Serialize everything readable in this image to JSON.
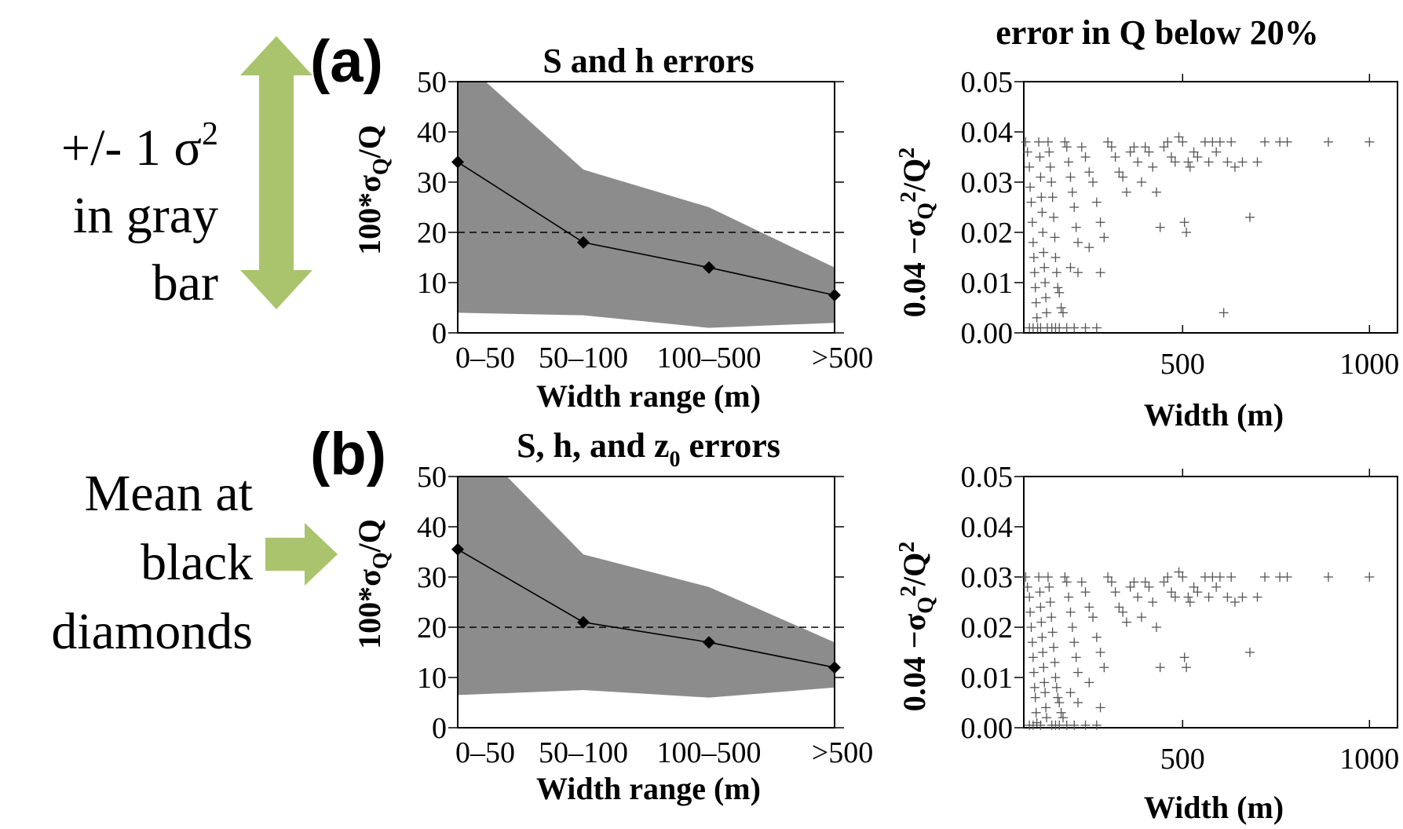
{
  "annotations": {
    "sigma_note": {
      "prefix": "+/- 1 σ",
      "sup": "2",
      "line2": "in gray",
      "line3": "bar"
    },
    "mean_note": {
      "line1": "Mean at",
      "line2": "black",
      "line3": "diamonds"
    },
    "arrow_color": "#a9c46c"
  },
  "colors": {
    "band": "#8c8c8c",
    "marker": "#000000",
    "threshold_line": "#000000",
    "scatter_marker": "#555555"
  },
  "chart_data": [
    {
      "id": "a",
      "type": "line",
      "panel_label": "(a)",
      "title": "S and  h errors",
      "title_sub": "",
      "title_after": "",
      "categories": [
        "0–50",
        "50–100",
        "100–500",
        ">500"
      ],
      "mean": [
        34,
        18,
        13,
        7.5
      ],
      "band_upper": [
        55,
        32.5,
        25,
        13
      ],
      "band_lower": [
        4,
        3.5,
        1,
        2
      ],
      "threshold": 20,
      "ylim": [
        0,
        50
      ],
      "yticks": [
        0,
        10,
        20,
        30,
        40,
        50
      ],
      "xlabel": "Width range (m)",
      "ylabel": "100*σQ/Q"
    },
    {
      "id": "a_right",
      "type": "scatter",
      "title": "error in Q below 20%",
      "xlabel": "Width (m)",
      "ylabel": "0.04  −σQ2/Q2",
      "xlim": [
        75,
        1075
      ],
      "ylim": [
        0,
        0.05
      ],
      "xticks": [
        500,
        1000
      ],
      "yticks": [
        "0.00",
        "0.01",
        "0.02",
        "0.03",
        "0.04",
        "0.05"
      ],
      "cap": 0.038,
      "points": [
        [
          80,
          0.038
        ],
        [
          85,
          0.036
        ],
        [
          90,
          0.033
        ],
        [
          92,
          0.029
        ],
        [
          95,
          0.026
        ],
        [
          98,
          0.022
        ],
        [
          100,
          0.018
        ],
        [
          102,
          0.015
        ],
        [
          104,
          0.012
        ],
        [
          106,
          0.009
        ],
        [
          108,
          0.006
        ],
        [
          110,
          0.003
        ],
        [
          112,
          0.001
        ],
        [
          115,
          0.038
        ],
        [
          118,
          0.035
        ],
        [
          120,
          0.031
        ],
        [
          122,
          0.027
        ],
        [
          124,
          0.024
        ],
        [
          126,
          0.02
        ],
        [
          128,
          0.016
        ],
        [
          130,
          0.013
        ],
        [
          132,
          0.01
        ],
        [
          134,
          0.007
        ],
        [
          136,
          0.004
        ],
        [
          138,
          0.001
        ],
        [
          140,
          0.038
        ],
        [
          143,
          0.036
        ],
        [
          146,
          0.033
        ],
        [
          149,
          0.03
        ],
        [
          152,
          0.027
        ],
        [
          155,
          0.023
        ],
        [
          158,
          0.019
        ],
        [
          160,
          0.015
        ],
        [
          163,
          0.012
        ],
        [
          166,
          0.009
        ],
        [
          170,
          0.008
        ],
        [
          175,
          0.005
        ],
        [
          180,
          0.004
        ],
        [
          185,
          0.038
        ],
        [
          190,
          0.037
        ],
        [
          195,
          0.034
        ],
        [
          200,
          0.031
        ],
        [
          205,
          0.028
        ],
        [
          210,
          0.025
        ],
        [
          215,
          0.021
        ],
        [
          220,
          0.018
        ],
        [
          230,
          0.037
        ],
        [
          240,
          0.035
        ],
        [
          250,
          0.032
        ],
        [
          260,
          0.03
        ],
        [
          270,
          0.026
        ],
        [
          280,
          0.022
        ],
        [
          290,
          0.019
        ],
        [
          300,
          0.038
        ],
        [
          310,
          0.037
        ],
        [
          320,
          0.035
        ],
        [
          330,
          0.032
        ],
        [
          340,
          0.031
        ],
        [
          350,
          0.028
        ],
        [
          360,
          0.036
        ],
        [
          370,
          0.037
        ],
        [
          380,
          0.034
        ],
        [
          390,
          0.03
        ],
        [
          400,
          0.037
        ],
        [
          410,
          0.036
        ],
        [
          420,
          0.033
        ],
        [
          430,
          0.028
        ],
        [
          440,
          0.021
        ],
        [
          450,
          0.037
        ],
        [
          460,
          0.038
        ],
        [
          470,
          0.035
        ],
        [
          480,
          0.034
        ],
        [
          490,
          0.039
        ],
        [
          500,
          0.038
        ],
        [
          505,
          0.022
        ],
        [
          510,
          0.02
        ],
        [
          515,
          0.034
        ],
        [
          520,
          0.033
        ],
        [
          530,
          0.036
        ],
        [
          540,
          0.035
        ],
        [
          560,
          0.038
        ],
        [
          570,
          0.034
        ],
        [
          580,
          0.038
        ],
        [
          590,
          0.036
        ],
        [
          600,
          0.038
        ],
        [
          610,
          0.004
        ],
        [
          620,
          0.034
        ],
        [
          630,
          0.038
        ],
        [
          640,
          0.033
        ],
        [
          660,
          0.034
        ],
        [
          680,
          0.023
        ],
        [
          700,
          0.034
        ],
        [
          720,
          0.038
        ],
        [
          760,
          0.038
        ],
        [
          780,
          0.038
        ],
        [
          890,
          0.038
        ],
        [
          1000,
          0.038
        ],
        [
          200,
          0.013
        ],
        [
          220,
          0.012
        ],
        [
          250,
          0.017
        ],
        [
          280,
          0.012
        ],
        [
          150,
          0.001
        ],
        [
          160,
          0.001
        ],
        [
          170,
          0.001
        ],
        [
          190,
          0.001
        ],
        [
          210,
          0.001
        ],
        [
          240,
          0.001
        ],
        [
          270,
          0.001
        ],
        [
          90,
          0.001
        ],
        [
          100,
          0.001
        ],
        [
          120,
          0.001
        ]
      ]
    },
    {
      "id": "b",
      "type": "line",
      "panel_label": "(b)",
      "title": "S, h, and z",
      "title_sub": "0",
      "title_after": " errors",
      "categories": [
        "0–50",
        "50–100",
        "100–500",
        ">500"
      ],
      "mean": [
        35.5,
        21,
        17,
        12
      ],
      "band_upper": [
        60,
        34.5,
        28,
        17
      ],
      "band_lower": [
        6.5,
        7.5,
        6,
        8
      ],
      "threshold": 20,
      "ylim": [
        0,
        50
      ],
      "yticks": [
        0,
        10,
        20,
        30,
        40,
        50
      ],
      "xlabel": "Width range (m)",
      "ylabel": "100*σQ/Q"
    },
    {
      "id": "b_right",
      "type": "scatter",
      "title": "",
      "xlabel": "Width (m)",
      "ylabel": "0.04  −σQ2/Q2",
      "xlim": [
        75,
        1075
      ],
      "ylim": [
        0,
        0.05
      ],
      "xticks": [
        500,
        1000
      ],
      "yticks": [
        "0.00",
        "0.01",
        "0.02",
        "0.03",
        "0.04",
        "0.05"
      ],
      "cap": 0.03,
      "points": [
        [
          80,
          0.03
        ],
        [
          85,
          0.028
        ],
        [
          90,
          0.026
        ],
        [
          92,
          0.023
        ],
        [
          95,
          0.02
        ],
        [
          98,
          0.017
        ],
        [
          100,
          0.014
        ],
        [
          102,
          0.011
        ],
        [
          104,
          0.008
        ],
        [
          106,
          0.006
        ],
        [
          108,
          0.003
        ],
        [
          110,
          0.001
        ],
        [
          115,
          0.03
        ],
        [
          118,
          0.027
        ],
        [
          120,
          0.024
        ],
        [
          122,
          0.021
        ],
        [
          124,
          0.018
        ],
        [
          126,
          0.015
        ],
        [
          128,
          0.012
        ],
        [
          130,
          0.009
        ],
        [
          132,
          0.007
        ],
        [
          134,
          0.004
        ],
        [
          136,
          0.002
        ],
        [
          140,
          0.03
        ],
        [
          143,
          0.028
        ],
        [
          146,
          0.025
        ],
        [
          149,
          0.022
        ],
        [
          152,
          0.019
        ],
        [
          155,
          0.016
        ],
        [
          158,
          0.013
        ],
        [
          160,
          0.01
        ],
        [
          163,
          0.008
        ],
        [
          166,
          0.006
        ],
        [
          170,
          0.005
        ],
        [
          175,
          0.003
        ],
        [
          180,
          0.002
        ],
        [
          185,
          0.03
        ],
        [
          190,
          0.029
        ],
        [
          195,
          0.026
        ],
        [
          200,
          0.023
        ],
        [
          205,
          0.02
        ],
        [
          210,
          0.017
        ],
        [
          215,
          0.014
        ],
        [
          220,
          0.011
        ],
        [
          230,
          0.029
        ],
        [
          240,
          0.027
        ],
        [
          250,
          0.024
        ],
        [
          260,
          0.022
        ],
        [
          270,
          0.018
        ],
        [
          280,
          0.015
        ],
        [
          290,
          0.012
        ],
        [
          300,
          0.03
        ],
        [
          310,
          0.029
        ],
        [
          320,
          0.027
        ],
        [
          330,
          0.024
        ],
        [
          340,
          0.023
        ],
        [
          350,
          0.021
        ],
        [
          360,
          0.028
        ],
        [
          370,
          0.029
        ],
        [
          380,
          0.026
        ],
        [
          390,
          0.022
        ],
        [
          400,
          0.029
        ],
        [
          410,
          0.028
        ],
        [
          420,
          0.025
        ],
        [
          430,
          0.02
        ],
        [
          440,
          0.012
        ],
        [
          450,
          0.029
        ],
        [
          460,
          0.03
        ],
        [
          470,
          0.027
        ],
        [
          480,
          0.026
        ],
        [
          490,
          0.031
        ],
        [
          500,
          0.03
        ],
        [
          505,
          0.014
        ],
        [
          510,
          0.012
        ],
        [
          515,
          0.026
        ],
        [
          520,
          0.025
        ],
        [
          530,
          0.028
        ],
        [
          540,
          0.027
        ],
        [
          560,
          0.03
        ],
        [
          570,
          0.026
        ],
        [
          580,
          0.03
        ],
        [
          590,
          0.028
        ],
        [
          600,
          0.03
        ],
        [
          620,
          0.026
        ],
        [
          630,
          0.03
        ],
        [
          640,
          0.025
        ],
        [
          660,
          0.026
        ],
        [
          680,
          0.015
        ],
        [
          700,
          0.026
        ],
        [
          720,
          0.03
        ],
        [
          760,
          0.03
        ],
        [
          780,
          0.03
        ],
        [
          890,
          0.03
        ],
        [
          1000,
          0.03
        ],
        [
          200,
          0.007
        ],
        [
          220,
          0.005
        ],
        [
          250,
          0.009
        ],
        [
          280,
          0.004
        ],
        [
          150,
          0.0005
        ],
        [
          160,
          0.0005
        ],
        [
          170,
          0.0005
        ],
        [
          190,
          0.0005
        ],
        [
          210,
          0.0005
        ],
        [
          240,
          0.0005
        ],
        [
          270,
          0.0005
        ],
        [
          90,
          0.0005
        ],
        [
          100,
          0.0005
        ],
        [
          120,
          0.0005
        ]
      ]
    }
  ]
}
